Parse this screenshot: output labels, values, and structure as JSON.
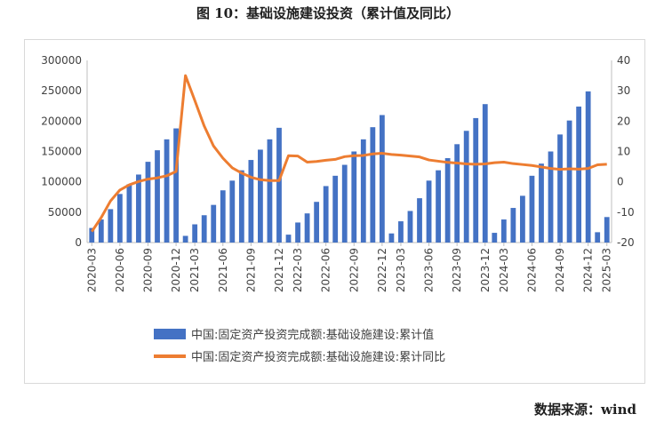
{
  "title": "图 10：基础设施建设投资（累计值及同比）",
  "source": "数据来源：wind",
  "colors": {
    "bar": "#4472c4",
    "line": "#ed7d31",
    "grid": "#d9d9d9",
    "text": "#404040"
  },
  "chart_data": {
    "type": "bar+line",
    "x": [
      "2020-03",
      "2020-04",
      "2020-05",
      "2020-06",
      "2020-07",
      "2020-08",
      "2020-09",
      "2020-10",
      "2020-11",
      "2020-12",
      "2021-02",
      "2021-03",
      "2021-04",
      "2021-05",
      "2021-06",
      "2021-07",
      "2021-08",
      "2021-09",
      "2021-10",
      "2021-11",
      "2021-12",
      "2022-02",
      "2022-03",
      "2022-04",
      "2022-05",
      "2022-06",
      "2022-07",
      "2022-08",
      "2022-09",
      "2022-10",
      "2022-11",
      "2022-12",
      "2023-02",
      "2023-03",
      "2023-04",
      "2023-05",
      "2023-06",
      "2023-07",
      "2023-08",
      "2023-09",
      "2023-10",
      "2023-11",
      "2023-12",
      "2024-02",
      "2024-03",
      "2024-04",
      "2024-05",
      "2024-06",
      "2024-07",
      "2024-08",
      "2024-09",
      "2024-10",
      "2024-11",
      "2024-12",
      "2025-02",
      "2025-03"
    ],
    "x_tick_labels": [
      "2020-03",
      "2020-06",
      "2020-09",
      "2020-12",
      "2021-03",
      "2021-06",
      "2021-09",
      "2021-12",
      "2022-03",
      "2022-06",
      "2022-09",
      "2022-12",
      "2023-03",
      "2023-06",
      "2023-09",
      "2023-12",
      "2024-03",
      "2024-06",
      "2024-09",
      "2024-12",
      "2025-03"
    ],
    "series": [
      {
        "name": "中国:固定资产投资完成额:基础设施建设:累计值",
        "axis": "left",
        "type": "bar",
        "values": [
          24000,
          38000,
          55000,
          80000,
          96000,
          112000,
          133000,
          152000,
          170000,
          188000,
          11000,
          30000,
          45000,
          62000,
          86000,
          102000,
          119000,
          136000,
          153000,
          170000,
          189000,
          13000,
          33000,
          48000,
          67000,
          93000,
          110000,
          128000,
          150000,
          170000,
          190000,
          210000,
          15000,
          35000,
          52000,
          73000,
          102000,
          119000,
          139000,
          162000,
          184000,
          205000,
          228000,
          16000,
          38000,
          57000,
          77000,
          110000,
          130000,
          150000,
          178000,
          201000,
          224000,
          249000,
          17000,
          42000
        ]
      },
      {
        "name": "中国:固定资产投资完成额:基础设施建设:累计同比",
        "axis": "right",
        "type": "line",
        "values": [
          -16.4,
          -11.8,
          -6.3,
          -2.7,
          -1.0,
          0.1,
          0.9,
          1.3,
          2.0,
          3.4,
          35.0,
          26.8,
          18.4,
          11.8,
          7.8,
          4.6,
          2.9,
          1.5,
          0.7,
          0.4,
          0.4,
          8.6,
          8.5,
          6.5,
          6.7,
          7.1,
          7.4,
          8.3,
          8.6,
          8.7,
          9.2,
          9.4,
          9.0,
          8.8,
          8.5,
          8.2,
          7.2,
          6.8,
          6.4,
          6.2,
          5.9,
          5.8,
          5.9,
          6.3,
          6.5,
          6.0,
          5.7,
          5.4,
          4.9,
          4.4,
          4.1,
          4.3,
          4.2,
          4.4,
          5.6,
          5.8
        ]
      }
    ],
    "left_axis": {
      "ylim": [
        0,
        300000
      ],
      "ticks": [
        "0",
        "50000",
        "100000",
        "150000",
        "200000",
        "250000",
        "300000"
      ]
    },
    "right_axis": {
      "ylim": [
        -20,
        40
      ],
      "ticks": [
        "-20",
        "-10",
        "0",
        "10",
        "20",
        "30",
        "40"
      ]
    },
    "grid": false,
    "legend_position": "bottom"
  }
}
